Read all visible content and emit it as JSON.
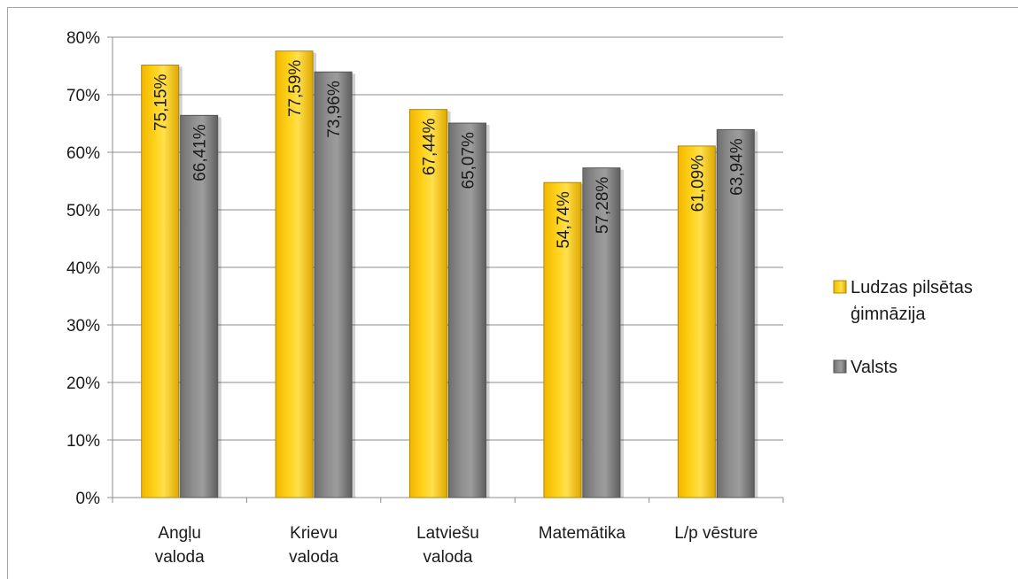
{
  "chart_data": {
    "type": "bar",
    "categories": [
      [
        "Angļu",
        "valoda"
      ],
      [
        "Krievu",
        "valoda"
      ],
      [
        "Latviešu",
        "valoda"
      ],
      [
        "Matemātika"
      ],
      [
        "L/p vēsture"
      ]
    ],
    "series": [
      {
        "name": [
          "Ludzas pilsētas",
          "ģimnāzija"
        ],
        "color": "#ffcc00",
        "values": [
          75.15,
          77.59,
          67.44,
          54.74,
          61.09
        ],
        "labels": [
          "75,15%",
          "77,59%",
          "67,44%",
          "54,74%",
          "61,09%"
        ]
      },
      {
        "name": [
          "Valsts"
        ],
        "color": "#808080",
        "values": [
          66.41,
          73.96,
          65.07,
          57.28,
          63.94
        ],
        "labels": [
          "66,41%",
          "73,96%",
          "65,07%",
          "57,28%",
          "63,94%"
        ]
      }
    ],
    "yticks": [
      "0%",
      "10%",
      "20%",
      "30%",
      "40%",
      "50%",
      "60%",
      "70%",
      "80%"
    ],
    "ylim": [
      0,
      80
    ],
    "grid": true,
    "legend": "right"
  }
}
